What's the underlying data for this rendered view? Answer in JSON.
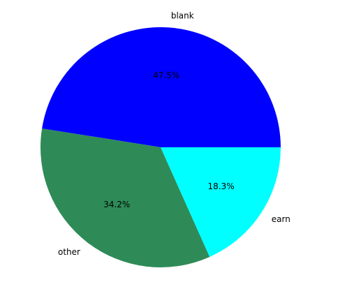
{
  "chart_data": {
    "type": "pie",
    "title": "",
    "start_angle_deg": 0,
    "direction": "counterclockwise",
    "slices": [
      {
        "label": "blank",
        "value": 47.5,
        "pct_label": "47.5%",
        "color": "#0000ff"
      },
      {
        "label": "other",
        "value": 34.2,
        "pct_label": "34.2%",
        "color": "#2e8b57"
      },
      {
        "label": "earn",
        "value": 18.3,
        "pct_label": "18.3%",
        "color": "#00ffff"
      }
    ]
  }
}
